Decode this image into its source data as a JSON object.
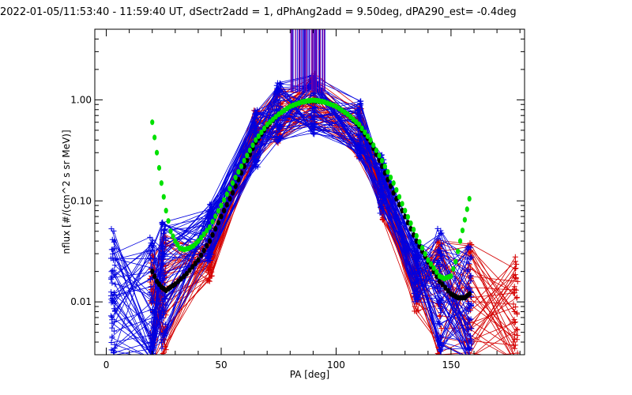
{
  "chart_data": {
    "type": "line",
    "title": "2022-01-05/11:53:40 - 11:59:40 UT, dSectr2add = 1, dPhAng2add = 9.50deg, dPA290_est=  -0.4deg",
    "xlabel": "PA [deg]",
    "ylabel": "nflux [#/(cm^2 s sr MeV)]",
    "xlim": [
      -5,
      182
    ],
    "ylim": [
      0.003,
      5
    ],
    "y_scale": "log",
    "x_ticks": [
      {
        "v": 0,
        "label": "0"
      },
      {
        "v": 50,
        "label": "50"
      },
      {
        "v": 100,
        "label": "100"
      },
      {
        "v": 150,
        "label": "150"
      }
    ],
    "y_ticks": [
      {
        "v": 0.01,
        "label": "0.01"
      },
      {
        "v": 0.1,
        "label": "0.10"
      },
      {
        "v": 1.0,
        "label": "1.00"
      }
    ],
    "colors": {
      "red": "#d40000",
      "blue": "#0000e0",
      "purple": "#8000a0",
      "green": "#00e000",
      "black": "#000000"
    },
    "series": [
      {
        "color": "red",
        "type": "lines-with-plus-markers",
        "x": [
          20,
          25,
          45,
          65,
          75,
          90,
          110,
          120,
          135,
          145,
          158,
          178
        ],
        "values": [
          0.008,
          0.012,
          0.03,
          0.45,
          0.7,
          0.97,
          0.45,
          0.12,
          0.015,
          0.012,
          0.01,
          0.007
        ]
      },
      {
        "color": "blue",
        "type": "lines-with-plus-markers",
        "x": [
          3,
          20,
          25,
          45,
          65,
          75,
          90,
          110,
          120,
          135,
          145,
          158
        ],
        "values": [
          0.012,
          0.01,
          0.015,
          0.05,
          0.4,
          0.75,
          0.9,
          0.5,
          0.15,
          0.02,
          0.012,
          0.008
        ]
      },
      {
        "color": "green",
        "type": "fit-points",
        "x": [
          20,
          22,
          24,
          26,
          28,
          30,
          32,
          34,
          36,
          38,
          40,
          45,
          50,
          55,
          60,
          65,
          70,
          75,
          80,
          85,
          88,
          90,
          92,
          95,
          100,
          105,
          110,
          115,
          120,
          125,
          130,
          135,
          140,
          145,
          147,
          150,
          152,
          154,
          156,
          158
        ],
        "values": [
          0.6,
          0.3,
          0.15,
          0.08,
          0.05,
          0.04,
          0.034,
          0.033,
          0.034,
          0.036,
          0.04,
          0.055,
          0.09,
          0.15,
          0.25,
          0.4,
          0.57,
          0.72,
          0.86,
          0.95,
          0.98,
          0.99,
          0.98,
          0.95,
          0.86,
          0.72,
          0.57,
          0.4,
          0.25,
          0.15,
          0.08,
          0.045,
          0.026,
          0.018,
          0.017,
          0.018,
          0.025,
          0.04,
          0.065,
          0.105
        ]
      },
      {
        "color": "black",
        "type": "fit-points",
        "x": [
          20,
          22,
          24,
          26,
          28,
          30,
          35,
          40,
          45,
          50,
          55,
          60,
          65,
          70,
          75,
          80,
          85,
          90,
          95,
          100,
          105,
          110,
          115,
          120,
          125,
          130,
          135,
          140,
          145,
          150,
          153,
          156,
          158
        ],
        "values": [
          0.02,
          0.016,
          0.014,
          0.013,
          0.014,
          0.015,
          0.019,
          0.026,
          0.04,
          0.07,
          0.12,
          0.22,
          0.38,
          0.55,
          0.72,
          0.86,
          0.95,
          0.98,
          0.95,
          0.86,
          0.72,
          0.55,
          0.38,
          0.22,
          0.12,
          0.07,
          0.04,
          0.025,
          0.016,
          0.012,
          0.011,
          0.011,
          0.012
        ]
      }
    ],
    "vertical_markers": {
      "colors": [
        "blue",
        "purple"
      ],
      "x_range": [
        80,
        95
      ],
      "y_from": 1.2
    },
    "grid": false,
    "legend": "none"
  }
}
